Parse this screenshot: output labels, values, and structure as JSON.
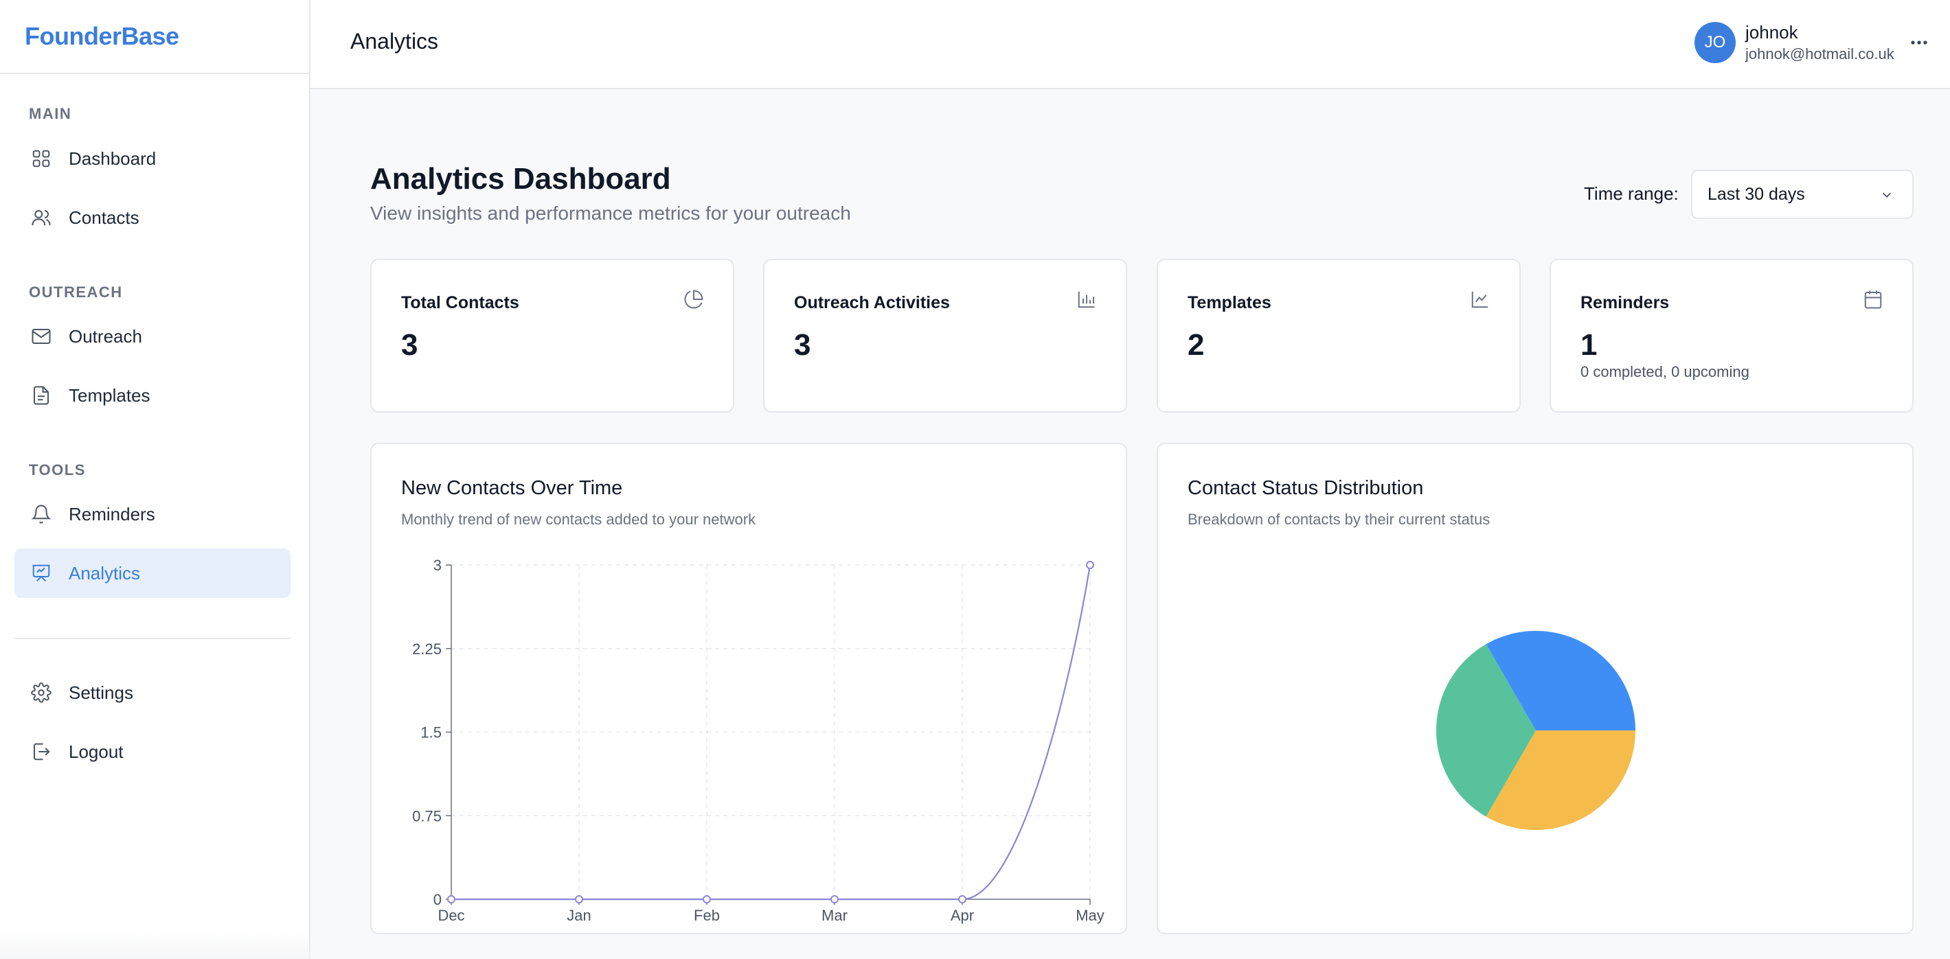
{
  "brand": "FounderBase",
  "sidebar": {
    "sections": [
      {
        "label": "MAIN",
        "items": [
          {
            "label": "Dashboard",
            "icon": "grid-icon"
          },
          {
            "label": "Contacts",
            "icon": "users-icon"
          }
        ]
      },
      {
        "label": "OUTREACH",
        "items": [
          {
            "label": "Outreach",
            "icon": "mail-icon"
          },
          {
            "label": "Templates",
            "icon": "file-icon"
          }
        ]
      },
      {
        "label": "TOOLS",
        "items": [
          {
            "label": "Reminders",
            "icon": "bell-icon"
          },
          {
            "label": "Analytics",
            "icon": "presentation-chart-icon",
            "active": true
          }
        ]
      }
    ],
    "footer_items": [
      {
        "label": "Settings",
        "icon": "gear-icon"
      },
      {
        "label": "Logout",
        "icon": "logout-icon"
      }
    ]
  },
  "header": {
    "title": "Analytics",
    "user": {
      "initials": "JO",
      "name": "johnok",
      "email": "johnok@hotmail.co.uk"
    },
    "more_icon": "ellipsis-icon"
  },
  "main": {
    "title": "Analytics Dashboard",
    "subtitle": "View insights and performance metrics for your outreach",
    "time_range": {
      "label": "Time range:",
      "value": "Last 30 days"
    },
    "stats": [
      {
        "title": "Total Contacts",
        "value": "3",
        "icon": "pie-chart-icon"
      },
      {
        "title": "Outreach Activities",
        "value": "3",
        "icon": "bar-chart-icon"
      },
      {
        "title": "Templates",
        "value": "2",
        "icon": "line-chart-icon"
      },
      {
        "title": "Reminders",
        "value": "1",
        "subtitle": "0 completed, 0 upcoming",
        "icon": "calendar-icon"
      }
    ],
    "line_card": {
      "title": "New Contacts Over Time",
      "subtitle": "Monthly trend of new contacts added to your network"
    },
    "pie_card": {
      "title": "Contact Status Distribution",
      "subtitle": "Breakdown of contacts by their current status"
    }
  },
  "colors": {
    "accent": "#3b7ddd",
    "line": "#8b85d6",
    "pie_blue": "#3f8ef5",
    "pie_yellow": "#f5bc4b",
    "pie_green": "#58c29c"
  },
  "chart_data": [
    {
      "type": "line",
      "x": [
        "Dec",
        "Jan",
        "Feb",
        "Mar",
        "Apr",
        "May"
      ],
      "series": [
        {
          "values": [
            0,
            0,
            0,
            0,
            0,
            3
          ]
        }
      ],
      "yticks": [
        "0",
        "0.75",
        "1.5",
        "2.25",
        "3"
      ],
      "ylim": [
        0,
        3
      ],
      "grid": true
    },
    {
      "type": "pie",
      "slices": [
        {
          "value": 1,
          "color": "#3f8ef5"
        },
        {
          "value": 1,
          "color": "#f5bc4b"
        },
        {
          "value": 1,
          "color": "#58c29c"
        }
      ]
    }
  ]
}
